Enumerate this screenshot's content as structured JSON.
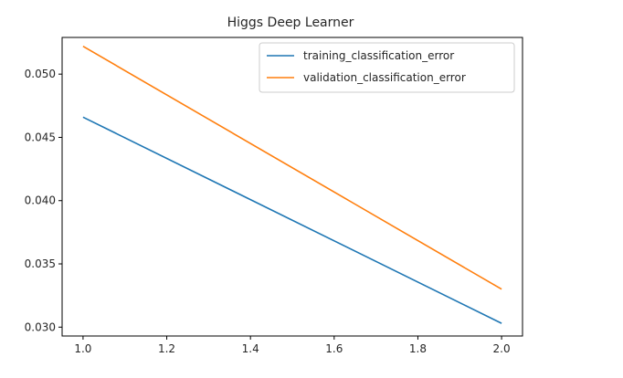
{
  "chart_data": {
    "type": "line",
    "title": "Higgs Deep Learner",
    "xlabel": "",
    "ylabel": "",
    "x": [
      1.0,
      2.0
    ],
    "xlim": [
      0.95,
      2.05
    ],
    "ylim": [
      0.0293,
      0.0529
    ],
    "xticks": [
      "1.0",
      "1.2",
      "1.4",
      "1.6",
      "1.8",
      "2.0"
    ],
    "yticks": [
      "0.030",
      "0.035",
      "0.040",
      "0.045",
      "0.050"
    ],
    "grid": false,
    "legend_position": "upper right",
    "series": [
      {
        "name": "training_classification_error",
        "color": "#1f77b4",
        "values": [
          0.0466,
          0.0303
        ]
      },
      {
        "name": "validation_classification_error",
        "color": "#ff7f0e",
        "values": [
          0.0522,
          0.033
        ]
      }
    ]
  }
}
